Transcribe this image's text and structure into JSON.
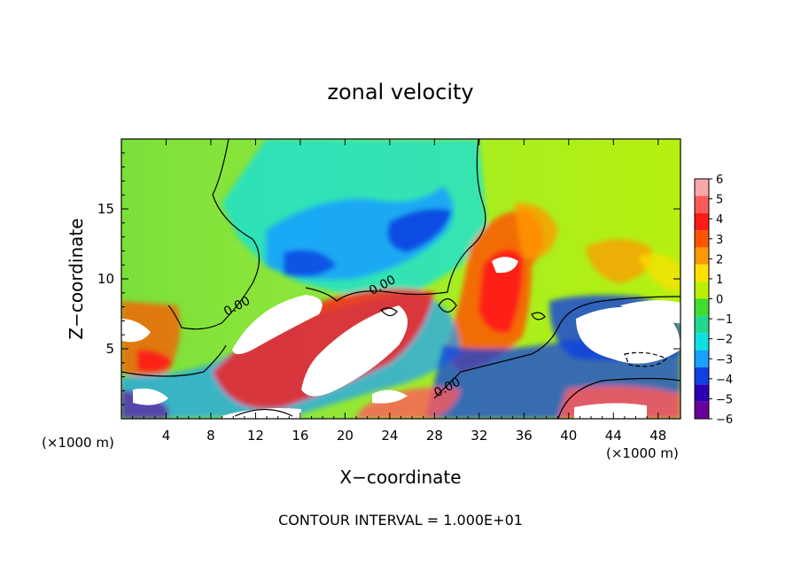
{
  "chart_data": {
    "type": "heatmap",
    "title": "zonal velocity",
    "xlabel": "X−coordinate",
    "ylabel": "Z−coordinate",
    "x_unit_left": "(×1000 m)",
    "x_unit_right": "(×1000 m)",
    "footer": "CONTOUR INTERVAL = 1.000E+01",
    "xlim": [
      0,
      50
    ],
    "ylim": [
      0,
      20
    ],
    "x_ticks": [
      4,
      8,
      12,
      16,
      20,
      24,
      28,
      32,
      36,
      40,
      44,
      48
    ],
    "y_ticks": [
      5,
      10,
      15
    ],
    "contour_labels": [
      {
        "text": "0.00",
        "x": 10.5,
        "y": 7.8
      },
      {
        "text": "0.00",
        "x": 23.5,
        "y": 9.3
      },
      {
        "text": "0.00",
        "x": 29.3,
        "y": 2.0
      }
    ],
    "colorbar": {
      "levels": [
        6,
        5,
        4,
        3,
        2,
        1,
        0,
        -1,
        -2,
        -3,
        -4,
        -5,
        -6
      ],
      "colors": [
        "#f7a8a8",
        "#ff5a5a",
        "#ff1a1a",
        "#ff5500",
        "#ff9900",
        "#ffe000",
        "#b8f000",
        "#40dc30",
        "#20d890",
        "#10e0e0",
        "#1aa0ff",
        "#1040e0",
        "#2a00b0",
        "#6a009a"
      ]
    },
    "values_note": "",
    "grid": false
  }
}
